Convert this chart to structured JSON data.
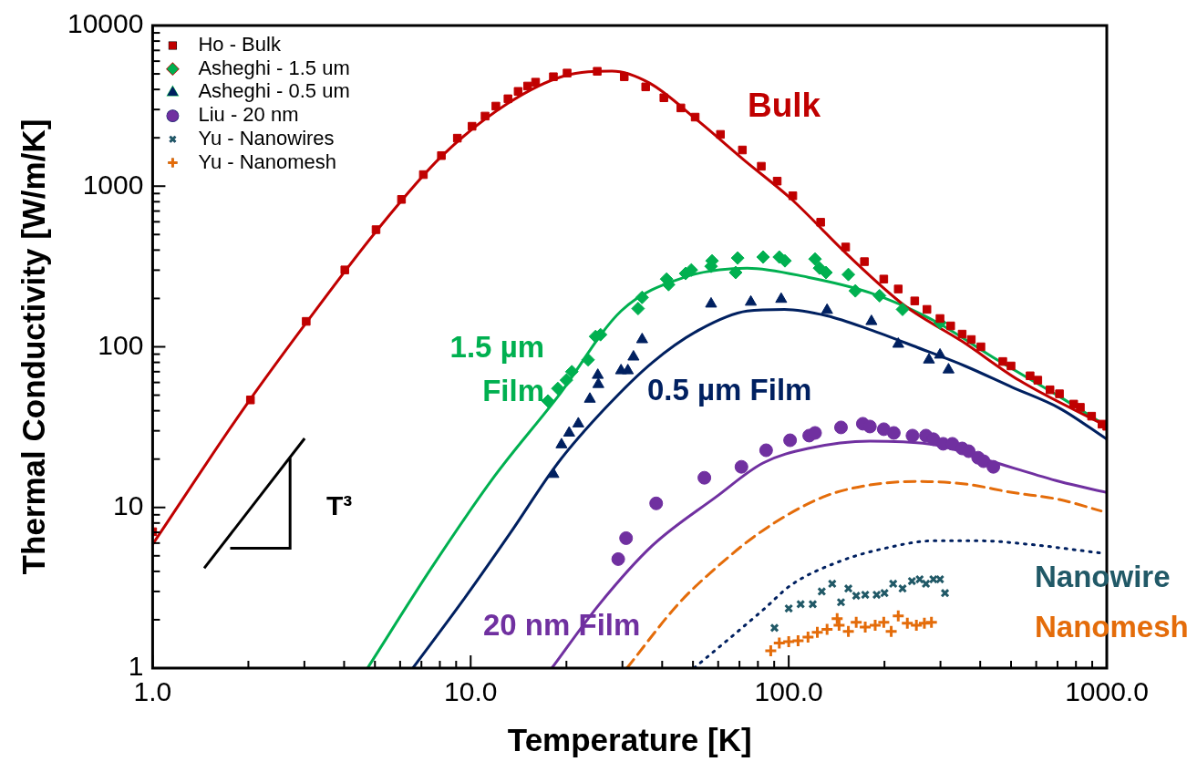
{
  "chart_data": {
    "type": "scatter",
    "xlabel": "Temperature [K]",
    "ylabel": "Thermal Conductivity [W/m/K]",
    "log": "xy",
    "grid": false,
    "legend": "top left",
    "xlim": [
      1,
      1000
    ],
    "ylim": [
      1,
      10000
    ],
    "xticks": [
      {
        "value": 1,
        "label": "1.0"
      },
      {
        "value": 2,
        "label": null
      },
      {
        "value": 3,
        "label": null
      },
      {
        "value": 4,
        "label": null
      },
      {
        "value": 5,
        "label": null
      },
      {
        "value": 6,
        "label": null
      },
      {
        "value": 7,
        "label": null
      },
      {
        "value": 8,
        "label": null
      },
      {
        "value": 9,
        "label": null
      },
      {
        "value": 10,
        "label": "10.0"
      },
      {
        "value": 20,
        "label": null
      },
      {
        "value": 30,
        "label": null
      },
      {
        "value": 40,
        "label": null
      },
      {
        "value": 50,
        "label": null
      },
      {
        "value": 60,
        "label": null
      },
      {
        "value": 70,
        "label": null
      },
      {
        "value": 80,
        "label": null
      },
      {
        "value": 90,
        "label": null
      },
      {
        "value": 100,
        "label": "100.0"
      },
      {
        "value": 200,
        "label": null
      },
      {
        "value": 300,
        "label": null
      },
      {
        "value": 400,
        "label": null
      },
      {
        "value": 500,
        "label": null
      },
      {
        "value": 600,
        "label": null
      },
      {
        "value": 700,
        "label": null
      },
      {
        "value": 800,
        "label": null
      },
      {
        "value": 900,
        "label": null
      },
      {
        "value": 1000,
        "label": "1000.0"
      }
    ],
    "yticks": [
      1,
      {
        "value": 2,
        "label": null
      },
      {
        "value": 3,
        "label": null
      },
      {
        "value": 4,
        "label": null
      },
      {
        "value": 5,
        "label": null
      },
      {
        "value": 6,
        "label": null
      },
      {
        "value": 7,
        "label": null
      },
      {
        "value": 8,
        "label": null
      },
      {
        "value": 9,
        "label": null
      },
      10,
      {
        "value": 20,
        "label": null
      },
      {
        "value": 30,
        "label": null
      },
      {
        "value": 40,
        "label": null
      },
      {
        "value": 50,
        "label": null
      },
      {
        "value": 60,
        "label": null
      },
      {
        "value": 70,
        "label": null
      },
      {
        "value": 80,
        "label": null
      },
      {
        "value": 90,
        "label": null
      },
      100,
      {
        "value": 200,
        "label": null
      },
      {
        "value": 300,
        "label": null
      },
      {
        "value": 400,
        "label": null
      },
      {
        "value": 500,
        "label": null
      },
      {
        "value": 600,
        "label": null
      },
      {
        "value": 700,
        "label": null
      },
      {
        "value": 800,
        "label": null
      },
      {
        "value": 900,
        "label": null
      },
      1000,
      {
        "value": 2000,
        "label": null
      },
      {
        "value": 3000,
        "label": null
      },
      {
        "value": 4000,
        "label": null
      },
      {
        "value": 5000,
        "label": null
      },
      {
        "value": 6000,
        "label": null
      },
      {
        "value": 7000,
        "label": null
      },
      {
        "value": 8000,
        "label": null
      },
      {
        "value": 9000,
        "label": null
      },
      10000
    ],
    "series": [
      {
        "name": "Ho - Bulk",
        "type": "scatter",
        "marker": "square",
        "color": "#c00000",
        "x": [
          1,
          2.03,
          3.04,
          4.02,
          5.04,
          6.06,
          7.1,
          8.09,
          9.08,
          10.1,
          11.1,
          12,
          13.1,
          14.1,
          15.1,
          16,
          18.2,
          20.1,
          25,
          30.4,
          35.5,
          40.5,
          45.8,
          50.8,
          61,
          71.5,
          82,
          92,
          103,
          126,
          151,
          173,
          199,
          221,
          249,
          272,
          299,
          323,
          351,
          375,
          402,
          471,
          500,
          574,
          607,
          663,
          710,
          787,
          826,
          896,
          966,
          1000
        ],
        "values": [
          7.06,
          46.7,
          144,
          301,
          536,
          827,
          1180,
          1550,
          1990,
          2360,
          2730,
          3150,
          3500,
          3890,
          4200,
          4440,
          4800,
          5060,
          5190,
          4800,
          4150,
          3550,
          3070,
          2690,
          2100,
          1680,
          1330,
          1075,
          871,
          596,
          418,
          339,
          264,
          229,
          193,
          171,
          150,
          135,
          120,
          111,
          100,
          81,
          76,
          66,
          62,
          54,
          51,
          44,
          42,
          37,
          33,
          32
        ]
      },
      {
        "name": "Asheghi - 1.5 um",
        "type": "scatter",
        "marker": "diamond",
        "color": "#00b050",
        "x": [
          17.5,
          18.8,
          20,
          20.8,
          23.4,
          24.7,
          25.6,
          33.6,
          34.6,
          41.3,
          41.9,
          47.4,
          49.4,
          57,
          57.4,
          68.1,
          69.1,
          83.1,
          93.4,
          97.3,
          121,
          125,
          131,
          154,
          162,
          193,
          228,
          299
        ],
        "values": [
          46,
          55,
          62,
          70,
          83,
          116,
          119,
          173,
          203,
          264,
          244,
          286,
          301,
          317,
          343,
          290,
          357,
          362,
          362,
          343,
          352,
          309,
          290,
          282,
          223,
          208,
          171,
          141
        ]
      },
      {
        "name": "Asheghi - 0.5 um",
        "type": "scatter",
        "marker": "triangle",
        "color": "#002060",
        "x": [
          18.2,
          19.3,
          20.4,
          21.8,
          23.7,
          25.1,
          25.2,
          29.7,
          31.2,
          32.5,
          34.6,
          57,
          76,
          94.7,
          132,
          182,
          221,
          276,
          299,
          318
        ],
        "values": [
          16.1,
          24.6,
          29.1,
          33.2,
          47.3,
          66.6,
          58.4,
          71.1,
          71.1,
          86.6,
          111,
          185,
          190,
          198,
          169,
          144,
          104,
          83,
          89,
          72
        ]
      },
      {
        "name": "Liu - 20 nm",
        "type": "scatter",
        "marker": "circle",
        "color": "#7030a0",
        "x": [
          29.1,
          30.8,
          38.3,
          54.3,
          71,
          84.9,
          101,
          116,
          121,
          146,
          171,
          180,
          199,
          214,
          236,
          245,
          270,
          285,
          306,
          327,
          351,
          368,
          394,
          410,
          440
        ],
        "values": [
          4.77,
          6.44,
          10.6,
          15.3,
          17.9,
          22.7,
          26.2,
          28,
          29.1,
          31.5,
          33.2,
          31.9,
          30.7,
          29.1,
          null,
          28,
          28,
          26.6,
          24.9,
          24.9,
          23.3,
          22.4,
          20.4,
          19.4,
          17.9
        ]
      },
      {
        "name": "Yu - Nanowires",
        "type": "scatter",
        "marker": "x",
        "color": "#215967",
        "x": [
          90.2,
          100,
          109,
          119,
          127,
          137,
          146,
          154,
          163,
          174,
          189,
          200,
          213,
          228,
          244,
          258,
          270,
          285,
          299,
          310
        ],
        "values": [
          1.78,
          2.35,
          2.5,
          2.5,
          3,
          3.35,
          2.57,
          3.13,
          2.82,
          2.86,
          2.86,
          2.93,
          3.35,
          3.13,
          3.48,
          3.57,
          3.35,
          3.57,
          3.57,
          2.93
        ]
      },
      {
        "name": "Yu - Nanomesh",
        "type": "scatter",
        "marker": "cross",
        "color": "#e46c0a",
        "x": [
          87.8,
          93.4,
          100,
          107,
          115,
          123,
          132,
          142,
          144,
          154,
          163,
          174,
          187,
          199,
          210,
          221,
          236,
          252,
          267,
          281
        ],
        "values": [
          1.28,
          1.43,
          1.46,
          1.48,
          1.56,
          1.67,
          1.74,
          2.03,
          1.85,
          1.69,
          1.93,
          1.8,
          1.85,
          1.93,
          1.69,
          2.11,
          1.9,
          1.85,
          1.9,
          1.93
        ]
      },
      {
        "type": "line",
        "marker": "none",
        "line_style": "solid",
        "color": "#c00000",
        "x": [
          1,
          1.92,
          3.04,
          5.04,
          8.09,
          13.1,
          19.7,
          27.8,
          36.5,
          51.4,
          72.5,
          102,
          154,
          232,
          351,
          529,
          1000
        ],
        "values": [
          5.9,
          40.4,
          141,
          522,
          1530,
          3280,
          4860,
          5200,
          4380,
          2590,
          1450,
          830,
          370,
          180,
          108,
          62,
          32
        ]
      },
      {
        "type": "line",
        "marker": "none",
        "line_style": "solid",
        "color": "#00b050",
        "x": [
          4.74,
          7.55,
          11.9,
          18.8,
          29.7,
          47,
          74,
          115,
          180,
          285,
          452,
          710,
          1000
        ],
        "values": [
          1,
          4.24,
          15.7,
          49,
          167,
          271,
          309,
          271,
          217,
          146,
          83,
          49,
          32
        ]
      },
      {
        "type": "line",
        "marker": "none",
        "line_style": "solid",
        "color": "#002060",
        "x": [
          6.58,
          9.46,
          13.3,
          18.8,
          26.5,
          37.3,
          52.5,
          74,
          97,
          132,
          180,
          254,
          358,
          504,
          710,
          1000
        ],
        "values": [
          1,
          2.64,
          6.9,
          18.9,
          41.5,
          80,
          128,
          167,
          171,
          156,
          128,
          99,
          76,
          56,
          41.5,
          26.6
        ]
      },
      {
        "type": "line",
        "marker": "none",
        "line_style": "solid",
        "color": "#7030a0",
        "x": [
          18,
          25.4,
          37.3,
          59,
          83,
          115,
          180,
          285,
          452,
          710,
          1000
        ],
        "values": [
          1,
          2.5,
          5.8,
          11.6,
          18.9,
          23.3,
          25.9,
          24.6,
          18.9,
          14.5,
          12.4
        ]
      },
      {
        "type": "line",
        "marker": "none",
        "line_style": "dashed",
        "color": "#e46c0a",
        "x": [
          31,
          44.9,
          59,
          83,
          128,
          180,
          254,
          358,
          504,
          710,
          960
        ],
        "values": [
          1,
          2.5,
          4.2,
          7.2,
          11.6,
          13.8,
          14.5,
          14,
          12.4,
          11.2,
          9.5
        ]
      },
      {
        "type": "line",
        "marker": "none",
        "line_style": "dotted",
        "color": "#002060",
        "x": [
          50.4,
          83,
          102,
          144,
          203,
          285,
          402,
          566,
          960
        ],
        "values": [
          1,
          2.3,
          3.3,
          4.6,
          5.6,
          6.2,
          6.2,
          5.9,
          5.2
        ]
      }
    ],
    "annotations": [
      "Bulk",
      "1.5 µm\nFilm",
      "0.5 µm Film",
      "20 nm Film",
      "Nanowire",
      "Nanomesh",
      "T³"
    ]
  }
}
